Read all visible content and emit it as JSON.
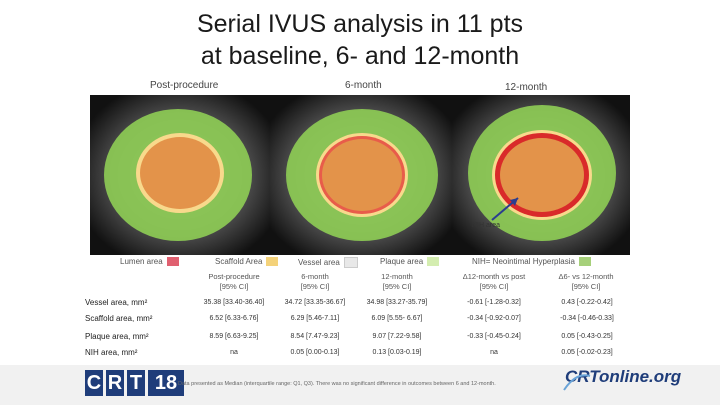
{
  "slide": {
    "title_line1": "Serial IVUS analysis in 11 pts",
    "title_line2": "at baseline, 6- and 12-month"
  },
  "panels": {
    "label_post": "Post-procedure",
    "label_6m": "6-month",
    "label_12m": "12-month",
    "nih_arrow_label": "NIH area"
  },
  "legend": {
    "lumen": "Lumen area",
    "scaffold": "Scaffold Area",
    "vessel": "Vessel area",
    "plaque": "Plaque area",
    "nih": "NIH= Neointimal Hyperplasia",
    "colors": {
      "lumen": "#e06070",
      "scaffold": "#f4d27a",
      "vessel": "#e8e8e8",
      "plaque": "#d4edb0",
      "nih": "#a6d07a"
    }
  },
  "table": {
    "columns": [
      {
        "l1": "Post-procedure",
        "l2": "[95% CI]"
      },
      {
        "l1": "6-month",
        "l2": "[95% CI]"
      },
      {
        "l1": "12-month",
        "l2": "[95% CI]"
      },
      {
        "l1": "Δ12-month vs post",
        "l2": "[95% CI]"
      },
      {
        "l1": "Δ6- vs 12-month",
        "l2": "[95% CI]"
      }
    ],
    "rows": [
      {
        "label": "Vessel area, mm²",
        "cells": [
          "35.38 [33.40-36.40]",
          "34.72 [33.35-36.67]",
          "34.98 [33.27-35.79]",
          "-0.61 [-1.28-0.32]",
          "0.43 [-0.22-0.42]"
        ]
      },
      {
        "label": "Scaffold area, mm²",
        "cells": [
          "6.52 [6.33-6.76]",
          "6.29 [5.46-7.11]",
          "6.09 [5.55- 6.67]",
          "-0.34 [-0.92-0.07]",
          "-0.34 [-0.46-0.33]"
        ]
      },
      {
        "label": "Plaque area, mm²",
        "cells": [
          "8.59 [6.63-9.25]",
          "8.54 [7.47-9.23]",
          "9.07 [7.22-9.58]",
          "-0.33 [-0.45-0.24]",
          "0.05 [-0.43-0.25]"
        ]
      },
      {
        "label": "NIH area, mm²",
        "cells": [
          "na",
          "0.05 [0.00-0.13]",
          "0.13 [0.03-0.19]",
          "na",
          "0.05 [-0.02-0.23]"
        ]
      }
    ]
  },
  "footer": {
    "logo_left": "CRT18",
    "note": "Data presented as Median (interquartile range: Q1, Q3). There was no significant difference in outcomes between 6 and 12-month.",
    "logo_right": "CRTonline.org"
  }
}
